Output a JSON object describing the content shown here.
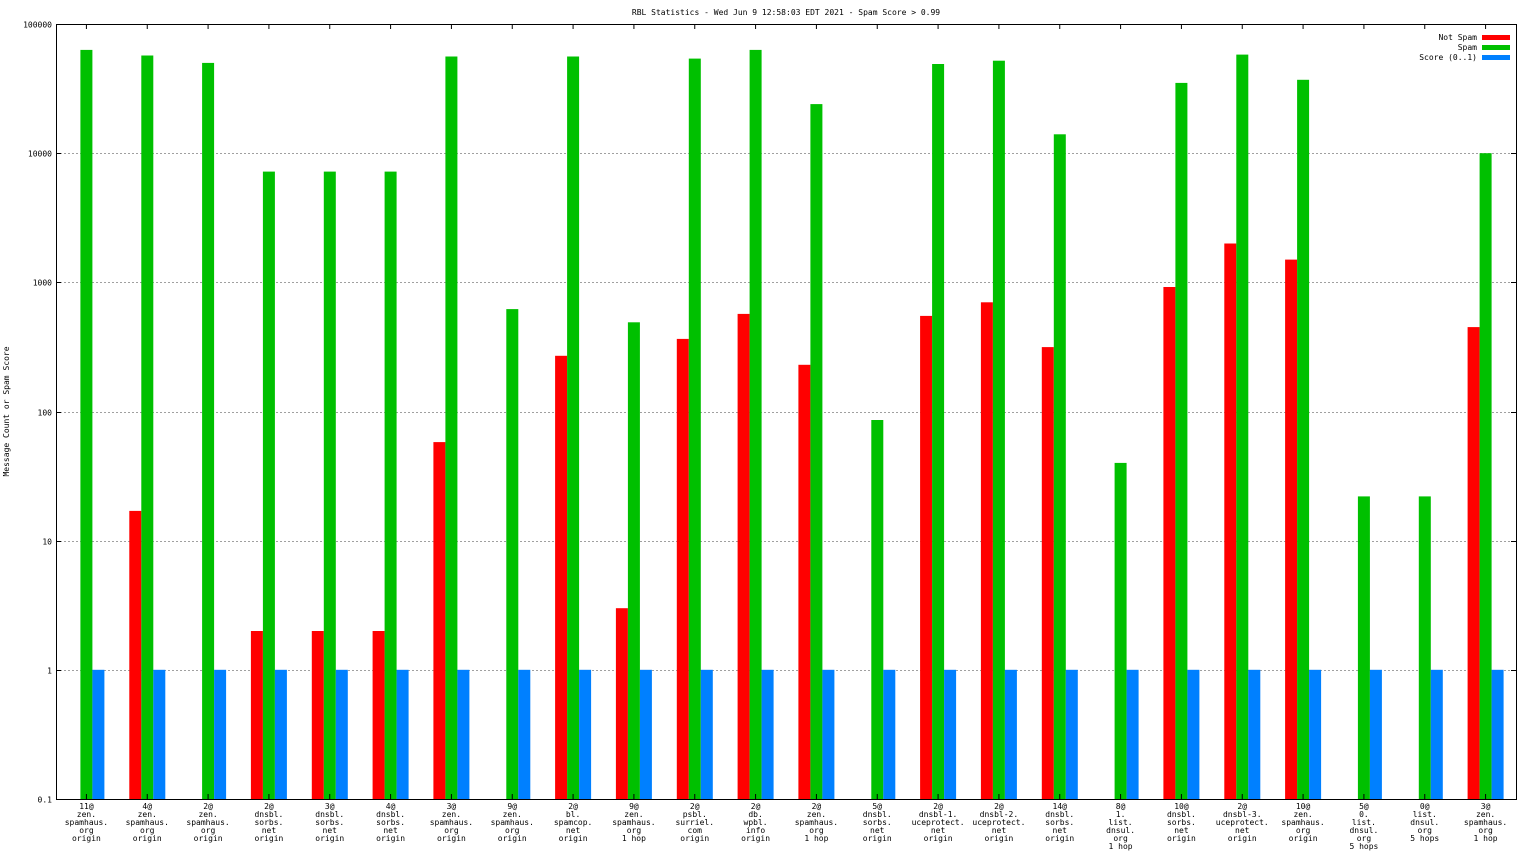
{
  "chart_data": {
    "type": "bar",
    "title": "RBL Statistics - Wed Jun  9 12:58:03 EDT 2021 - Spam Score > 0.99",
    "ylabel": "Message Count or Spam Score",
    "xlabel": "",
    "y_scale": "log",
    "ylim": [
      0.1,
      100000
    ],
    "y_ticks": [
      "0.1",
      "1",
      "10",
      "100",
      "1000",
      "10000",
      "100000"
    ],
    "grid": true,
    "legend_position": "top-right",
    "categories": [
      [
        "11@",
        "zen.",
        "spamhaus.",
        "org",
        "origin"
      ],
      [
        "4@",
        "zen.",
        "spamhaus.",
        "org",
        "origin"
      ],
      [
        "2@",
        "zen.",
        "spamhaus.",
        "org",
        "origin"
      ],
      [
        "2@",
        "dnsbl.",
        "sorbs.",
        "net",
        "origin"
      ],
      [
        "3@",
        "dnsbl.",
        "sorbs.",
        "net",
        "origin"
      ],
      [
        "4@",
        "dnsbl.",
        "sorbs.",
        "net",
        "origin"
      ],
      [
        "3@",
        "zen.",
        "spamhaus.",
        "org",
        "origin"
      ],
      [
        "9@",
        "zen.",
        "spamhaus.",
        "org",
        "origin"
      ],
      [
        "2@",
        "bl.",
        "spamcop.",
        "net",
        "origin"
      ],
      [
        "9@",
        "zen.",
        "spamhaus.",
        "org",
        "1 hop"
      ],
      [
        "2@",
        "psbl.",
        "surriel.",
        "com",
        "origin"
      ],
      [
        "2@",
        "db.",
        "wpbl.",
        "info",
        "origin"
      ],
      [
        "2@",
        "zen.",
        "spamhaus.",
        "org",
        "1 hop"
      ],
      [
        "5@",
        "dnsbl.",
        "sorbs.",
        "net",
        "origin"
      ],
      [
        "2@",
        "dnsbl-1.",
        "uceprotect.",
        "net",
        "origin"
      ],
      [
        "2@",
        "dnsbl-2.",
        "uceprotect.",
        "net",
        "origin"
      ],
      [
        "14@",
        "dnsbl.",
        "sorbs.",
        "net",
        "origin"
      ],
      [
        "8@",
        "1.",
        "list.",
        "dnsul.",
        "org",
        "1 hop"
      ],
      [
        "10@",
        "dnsbl.",
        "sorbs.",
        "net",
        "origin"
      ],
      [
        "2@",
        "dnsbl-3.",
        "uceprotect.",
        "net",
        "origin"
      ],
      [
        "10@",
        "zen.",
        "spamhaus.",
        "org",
        "origin"
      ],
      [
        "5@",
        "0.",
        "list.",
        "dnsul.",
        "org",
        "5 hops"
      ],
      [
        "0@",
        "list.",
        "dnsul.",
        "org",
        "5 hops"
      ],
      [
        "3@",
        "zen.",
        "spamhaus.",
        "org",
        "1 hop"
      ]
    ],
    "series": [
      {
        "name": "Not Spam",
        "color": "#ff0000",
        "values": [
          0,
          17,
          0,
          2,
          2,
          2,
          58,
          0,
          270,
          3,
          365,
          570,
          230,
          0,
          550,
          700,
          315,
          0,
          920,
          2000,
          1500,
          0,
          0,
          450
        ]
      },
      {
        "name": "Spam",
        "color": "#00c000",
        "values": [
          63000,
          57000,
          50000,
          7200,
          7200,
          7200,
          56000,
          620,
          56000,
          490,
          54000,
          63000,
          24000,
          86,
          49000,
          52000,
          14000,
          40,
          35000,
          58000,
          37000,
          22,
          22,
          10000
        ]
      },
      {
        "name": "Score (0..1)",
        "color": "#0080ff",
        "values": [
          1,
          1,
          1,
          1,
          1,
          1,
          1,
          1,
          1,
          1,
          1,
          1,
          1,
          1,
          1,
          1,
          1,
          1,
          1,
          1,
          1,
          1,
          1,
          1
        ]
      }
    ]
  }
}
